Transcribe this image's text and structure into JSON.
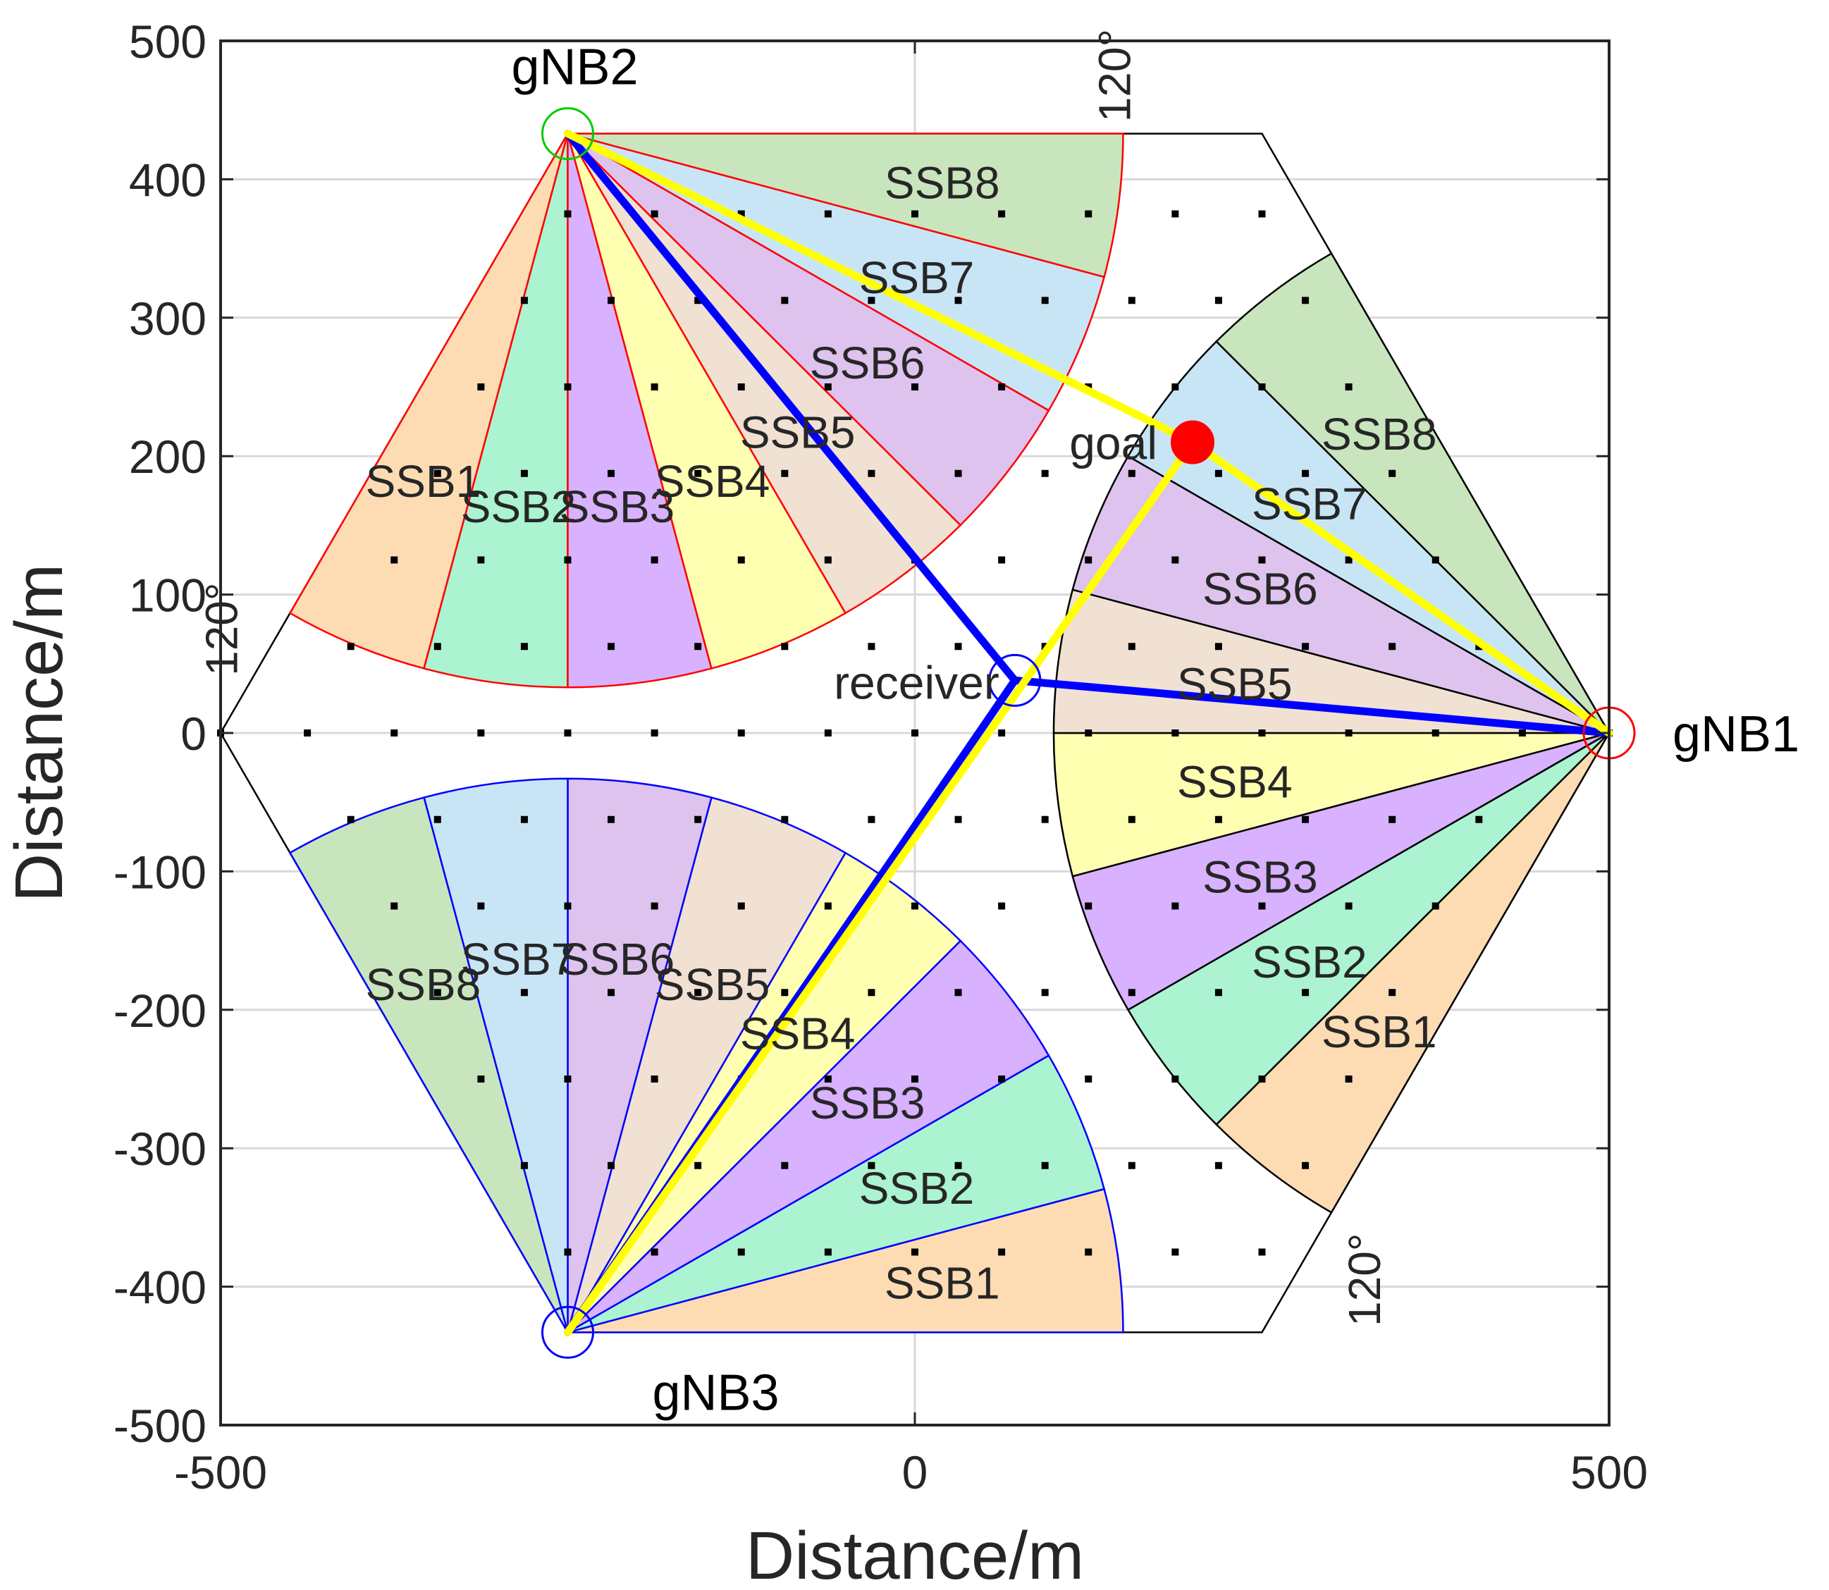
{
  "chart_data": {
    "type": "scatter",
    "title": "",
    "xlabel": "Distance/m",
    "ylabel": "Distance/m",
    "xlim": [
      -500,
      500
    ],
    "ylim": [
      -500,
      500
    ],
    "xticks": [
      -500,
      0,
      500
    ],
    "yticks": [
      500,
      400,
      300,
      200,
      100,
      0,
      -100,
      -200,
      -300,
      -400,
      -500
    ],
    "grid": true,
    "base_stations": [
      {
        "label": "gNB1",
        "x": 500,
        "y": 0,
        "color": "#ff0000",
        "sector_edge": "#000000",
        "direction_deg": 180,
        "angle_label": "120°"
      },
      {
        "label": "gNB2",
        "x": -250,
        "y": 433,
        "color": "#00cc00",
        "sector_edge": "#ff0000",
        "direction_deg": -60,
        "angle_label": "120°"
      },
      {
        "label": "gNB3",
        "x": -250,
        "y": -433,
        "color": "#0000ff",
        "sector_edge": "#0000ff",
        "direction_deg": 60,
        "angle_label": "120°"
      }
    ],
    "beams": [
      "SSB1",
      "SSB2",
      "SSB3",
      "SSB4",
      "SSB5",
      "SSB6",
      "SSB7",
      "SSB8"
    ],
    "beam_colors": [
      "#fddcb4",
      "#abf3d1",
      "#d8b1ff",
      "#ffffb2",
      "#f0e1d3",
      "#ddc3ee",
      "#c8e5f6",
      "#c9e5bd"
    ],
    "sector_radius": 400,
    "sector_span_deg": 120,
    "hexagon_vertices": [
      [
        500,
        0
      ],
      [
        250,
        433
      ],
      [
        -250,
        433
      ],
      [
        -500,
        0
      ],
      [
        -250,
        -433
      ],
      [
        250,
        -433
      ]
    ],
    "receiver": {
      "label": "receiver",
      "x": 72,
      "y": 38,
      "color": "#0000ff"
    },
    "goal": {
      "label": "goal",
      "x": 200,
      "y": 210,
      "color": "#ff0000"
    },
    "blue_path": {
      "color": "#0000ff",
      "points": [
        [
          -250,
          433
        ],
        [
          72,
          38
        ],
        [
          -250,
          -433
        ],
        [
          72,
          38
        ],
        [
          500,
          0
        ]
      ]
    },
    "yellow_path": {
      "color": "#ffff00",
      "points": [
        [
          -250,
          433
        ],
        [
          200,
          210
        ],
        [
          500,
          0
        ],
        [
          200,
          210
        ],
        [
          -250,
          -433
        ]
      ]
    },
    "grid_point_spacing": 62.5
  }
}
